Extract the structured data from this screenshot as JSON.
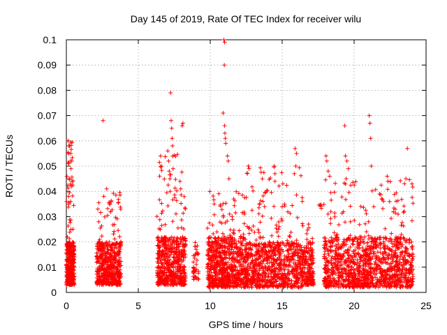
{
  "chart_data": {
    "type": "scatter",
    "title": "Day 145 of 2019, Rate Of TEC Index for receiver wilu",
    "xlabel": "GPS time / hours",
    "ylabel": "ROTI / TECUs",
    "xlim": [
      0,
      25
    ],
    "ylim": [
      0,
      0.1
    ],
    "grid": true,
    "marker": "+",
    "marker_color": "#ff0000",
    "x_ticks": [
      {
        "value": 0,
        "label": "0"
      },
      {
        "value": 5,
        "label": "5"
      },
      {
        "value": 10,
        "label": "10"
      },
      {
        "value": 15,
        "label": "15"
      },
      {
        "value": 20,
        "label": "20"
      },
      {
        "value": 25,
        "label": "25"
      }
    ],
    "y_ticks": [
      {
        "value": 0,
        "label": "0"
      },
      {
        "value": 0.01,
        "label": "0.01"
      },
      {
        "value": 0.02,
        "label": "0.02"
      },
      {
        "value": 0.03,
        "label": "0.03"
      },
      {
        "value": 0.04,
        "label": "0.04"
      },
      {
        "value": 0.05,
        "label": "0.05"
      },
      {
        "value": 0.06,
        "label": "0.06"
      },
      {
        "value": 0.07,
        "label": "0.07"
      },
      {
        "value": 0.08,
        "label": "0.08"
      },
      {
        "value": 0.09,
        "label": "0.09"
      },
      {
        "value": 0.1,
        "label": "0.1"
      }
    ],
    "clusters": [
      {
        "x": [
          0.0,
          0.55
        ],
        "y": [
          0.003,
          0.06
        ],
        "bulk_top": 0.02,
        "count": 360
      },
      {
        "x": [
          2.1,
          3.8
        ],
        "y": [
          0.003,
          0.04
        ],
        "bulk_top": 0.02,
        "count": 520
      },
      {
        "x": [
          6.3,
          8.3
        ],
        "y": [
          0.003,
          0.055
        ],
        "bulk_top": 0.022,
        "count": 560
      },
      {
        "x": [
          8.8,
          9.2
        ],
        "y": [
          0.005,
          0.023
        ],
        "bulk_top": 0.02,
        "count": 40
      },
      {
        "x": [
          9.8,
          12.5
        ],
        "y": [
          0.002,
          0.04
        ],
        "bulk_top": 0.022,
        "count": 720
      },
      {
        "x": [
          12.5,
          16.4
        ],
        "y": [
          0.002,
          0.05
        ],
        "bulk_top": 0.02,
        "count": 800
      },
      {
        "x": [
          16.4,
          17.2
        ],
        "y": [
          0.003,
          0.03
        ],
        "bulk_top": 0.02,
        "count": 200
      },
      {
        "x": [
          17.5,
          17.9
        ],
        "y": [
          0.033,
          0.035
        ],
        "bulk_top": 0.035,
        "count": 6
      },
      {
        "x": [
          17.9,
          24.1
        ],
        "y": [
          0.002,
          0.045
        ],
        "bulk_top": 0.022,
        "count": 1200
      }
    ],
    "points": [
      [
        0.12,
        0.06
      ],
      [
        0.22,
        0.058
      ],
      [
        0.18,
        0.055
      ],
      [
        0.28,
        0.052
      ],
      [
        0.32,
        0.049
      ],
      [
        0.2,
        0.045
      ],
      [
        0.35,
        0.042
      ],
      [
        0.15,
        0.038
      ],
      [
        0.3,
        0.036
      ],
      [
        2.55,
        0.068
      ],
      [
        2.8,
        0.041
      ],
      [
        2.6,
        0.038
      ],
      [
        3.0,
        0.035
      ],
      [
        6.55,
        0.054
      ],
      [
        6.6,
        0.05
      ],
      [
        7.05,
        0.056
      ],
      [
        7.1,
        0.052
      ],
      [
        7.15,
        0.048
      ],
      [
        7.2,
        0.045
      ],
      [
        7.25,
        0.079
      ],
      [
        7.28,
        0.068
      ],
      [
        7.32,
        0.065
      ],
      [
        7.35,
        0.061
      ],
      [
        7.38,
        0.058
      ],
      [
        7.22,
        0.04
      ],
      [
        8.05,
        0.066
      ],
      [
        8.1,
        0.067
      ],
      [
        7.9,
        0.044
      ],
      [
        7.95,
        0.041
      ],
      [
        10.95,
        0.1
      ],
      [
        11.0,
        0.099
      ],
      [
        10.98,
        0.09
      ],
      [
        10.9,
        0.071
      ],
      [
        11.0,
        0.066
      ],
      [
        11.02,
        0.063
      ],
      [
        11.05,
        0.061
      ],
      [
        11.08,
        0.059
      ],
      [
        11.2,
        0.054
      ],
      [
        11.25,
        0.052
      ],
      [
        11.3,
        0.045
      ],
      [
        12.65,
        0.05
      ],
      [
        12.7,
        0.049
      ],
      [
        14.45,
        0.05
      ],
      [
        14.5,
        0.047
      ],
      [
        15.05,
        0.043
      ],
      [
        15.9,
        0.057
      ],
      [
        16.0,
        0.055
      ],
      [
        15.95,
        0.05
      ],
      [
        15.85,
        0.047
      ],
      [
        18.05,
        0.054
      ],
      [
        18.1,
        0.052
      ],
      [
        18.2,
        0.048
      ],
      [
        18.3,
        0.046
      ],
      [
        19.35,
        0.066
      ],
      [
        19.4,
        0.054
      ],
      [
        19.5,
        0.052
      ],
      [
        19.6,
        0.049
      ],
      [
        19.45,
        0.045
      ],
      [
        21.05,
        0.07
      ],
      [
        21.1,
        0.067
      ],
      [
        21.15,
        0.061
      ],
      [
        21.2,
        0.05
      ],
      [
        22.3,
        0.046
      ],
      [
        22.35,
        0.044
      ],
      [
        23.7,
        0.057
      ],
      [
        23.6,
        0.045
      ],
      [
        23.5,
        0.043
      ],
      [
        0.3,
        0.012
      ],
      [
        2.9,
        0.011
      ],
      [
        7.0,
        0.012
      ],
      [
        10.5,
        0.01
      ],
      [
        14.0,
        0.009
      ],
      [
        16.8,
        0.013
      ],
      [
        20.5,
        0.014
      ],
      [
        23.0,
        0.01
      ]
    ]
  }
}
